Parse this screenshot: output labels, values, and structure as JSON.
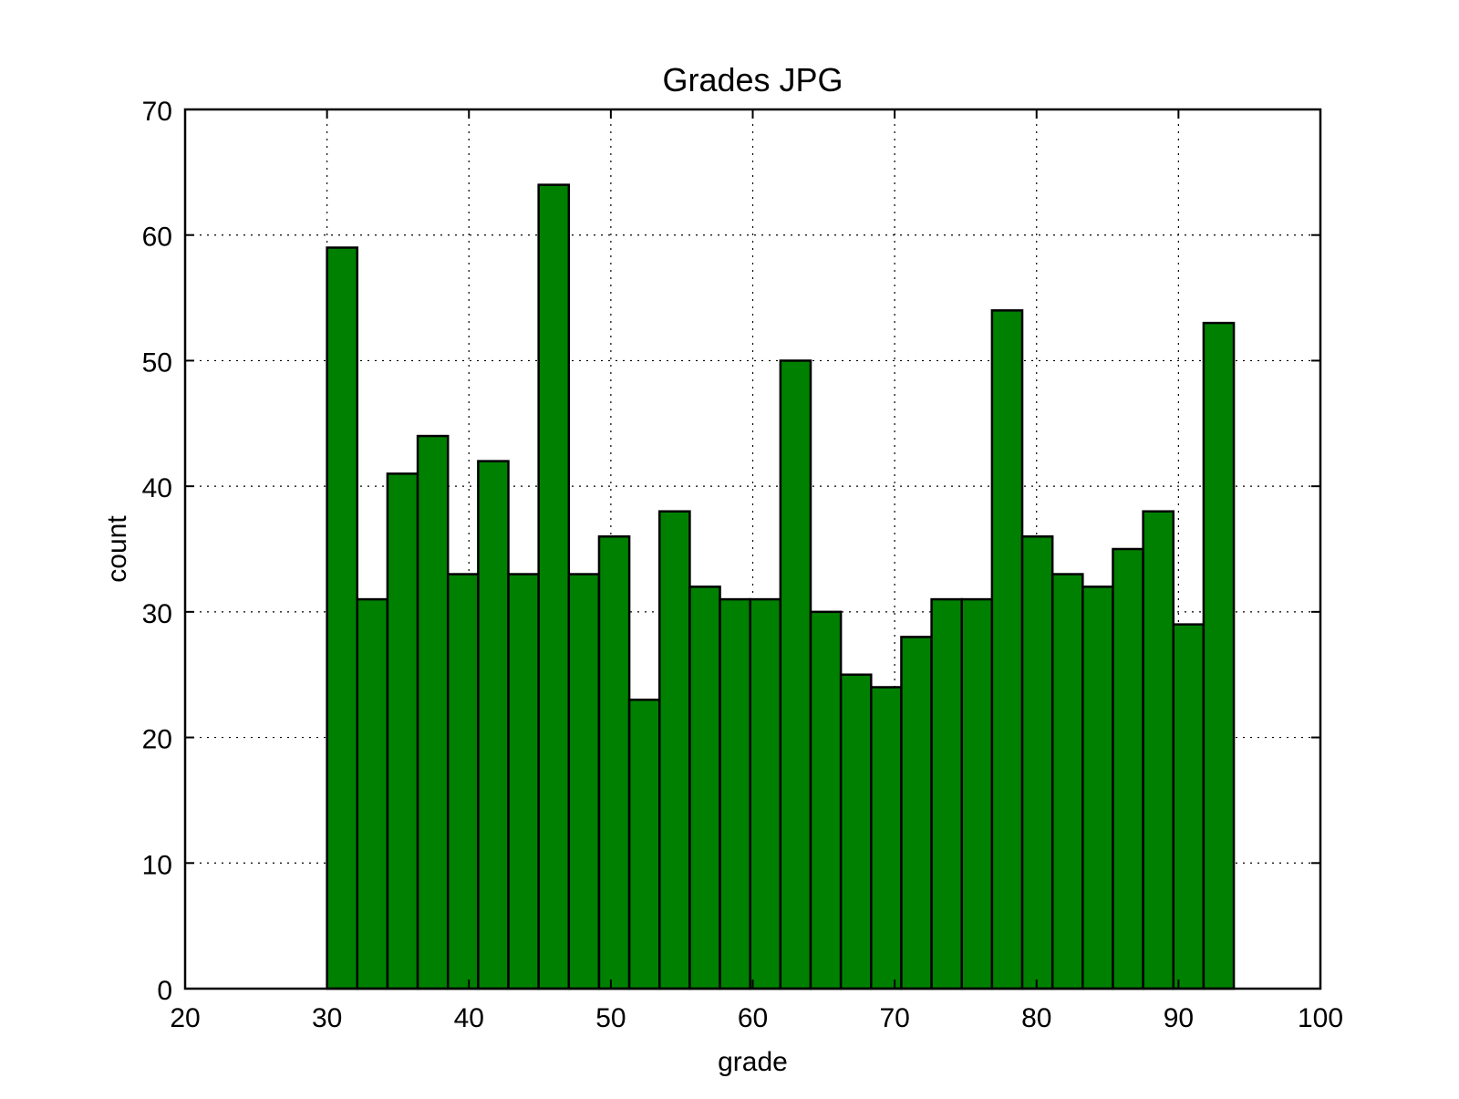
{
  "chart_data": {
    "type": "bar",
    "title": "Grades JPG",
    "xlabel": "grade",
    "ylabel": "count",
    "xlim": [
      20,
      100
    ],
    "ylim": [
      0,
      70
    ],
    "xticks": [
      20,
      30,
      40,
      50,
      60,
      70,
      80,
      90,
      100
    ],
    "yticks": [
      0,
      10,
      20,
      30,
      40,
      50,
      60,
      70
    ],
    "grid": true,
    "bin_width": 2.13,
    "bin_start": 30,
    "values": [
      59,
      31,
      41,
      44,
      33,
      42,
      33,
      64,
      33,
      36,
      23,
      38,
      32,
      31,
      31,
      50,
      30,
      25,
      24,
      28,
      31,
      31,
      54,
      36,
      33,
      32,
      35,
      38,
      29,
      53
    ],
    "bar_color": "#008000",
    "edge_color": "#000000"
  }
}
